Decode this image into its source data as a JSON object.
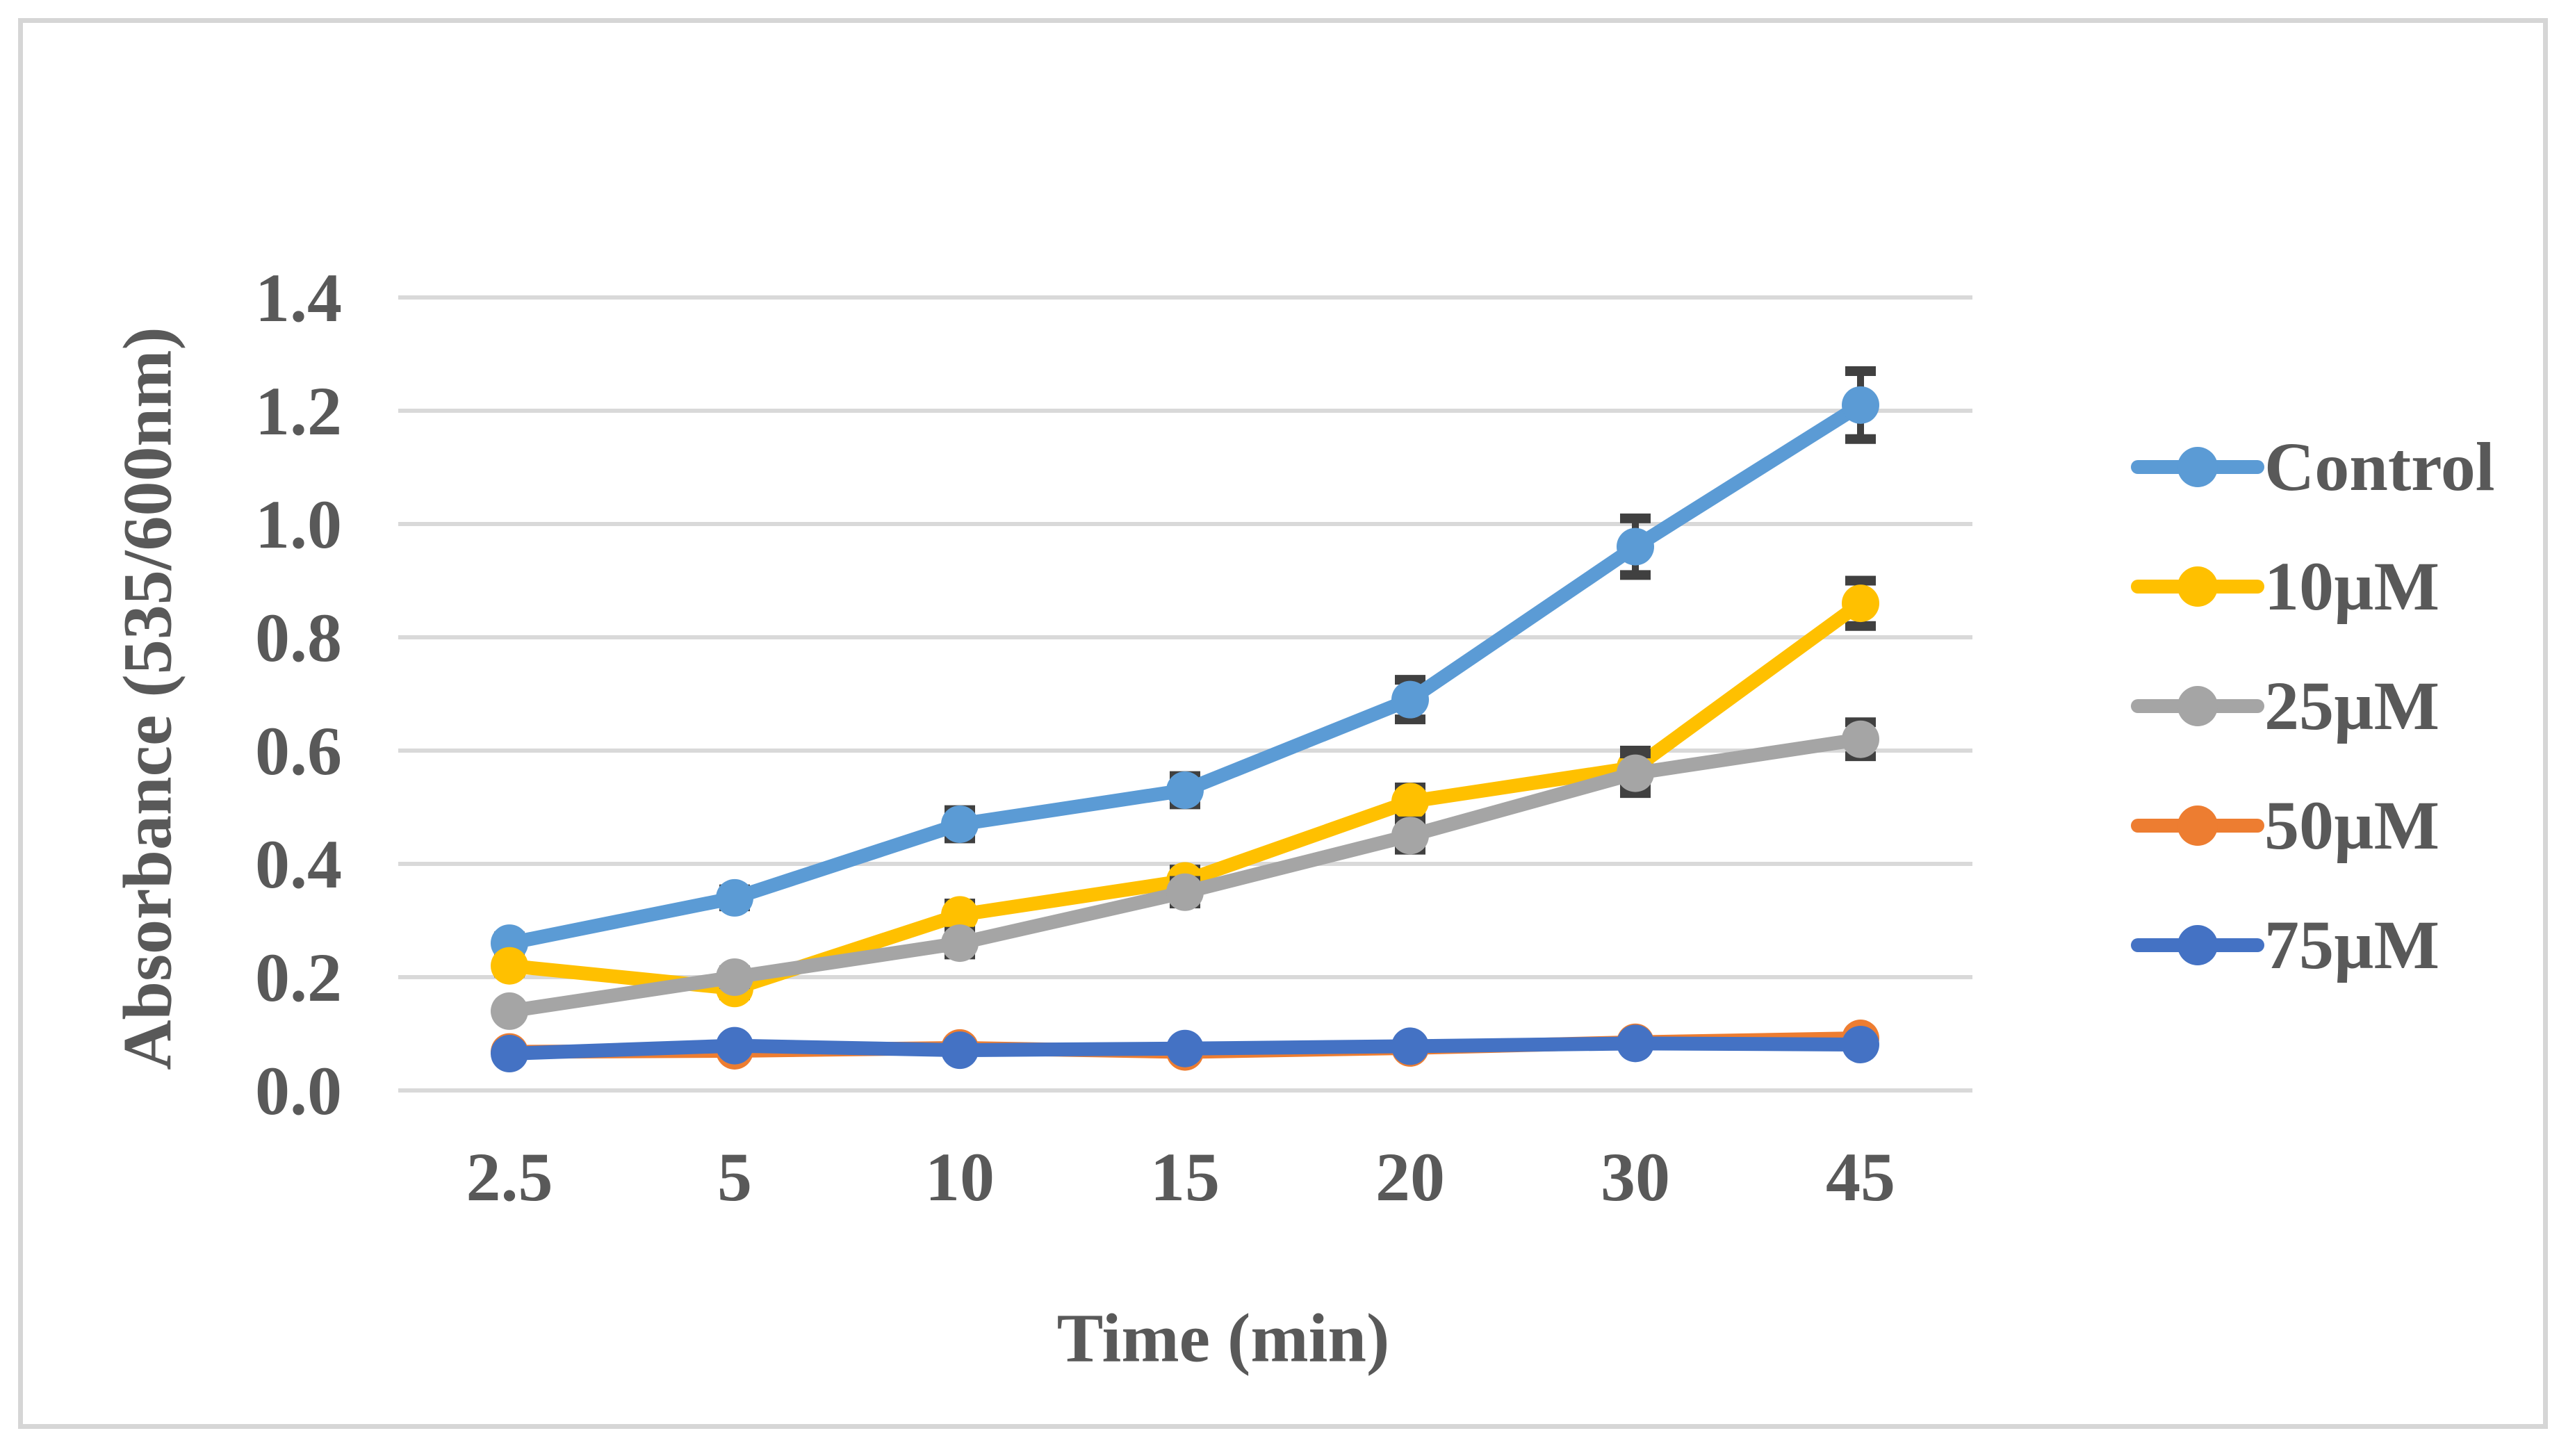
{
  "figure": {
    "background": "#ffffff",
    "border_color": "#d6d6d6"
  },
  "chart_data": {
    "type": "line",
    "title": "",
    "xlabel": "Time (min)",
    "ylabel": "Absorbance (535/600nm)",
    "categories": [
      "2.5",
      "5",
      "10",
      "15",
      "20",
      "30",
      "45"
    ],
    "y_ticks": [
      "0.0",
      "0.2",
      "0.4",
      "0.6",
      "0.8",
      "1.0",
      "1.2",
      "1.4"
    ],
    "ylim": [
      0,
      1.4
    ],
    "grid": "horizontal",
    "legend_position": "right",
    "gridline_color": "#d9d9d9",
    "error_bar_color": "#404040",
    "text_color": "#595959",
    "series": [
      {
        "name": "Control",
        "color": "#5B9BD5",
        "values": [
          0.26,
          0.34,
          0.47,
          0.53,
          0.69,
          0.96,
          1.21
        ],
        "errors": [
          0.012,
          0.015,
          0.025,
          0.025,
          0.035,
          0.05,
          0.06
        ]
      },
      {
        "name": "10µM",
        "color": "#FFC000",
        "values": [
          0.22,
          0.18,
          0.31,
          0.37,
          0.51,
          0.57,
          0.86
        ],
        "errors": [
          0.012,
          0.012,
          0.02,
          0.02,
          0.025,
          0.03,
          0.04
        ]
      },
      {
        "name": "25µM",
        "color": "#A5A5A5",
        "values": [
          0.14,
          0.2,
          0.26,
          0.35,
          0.45,
          0.56,
          0.62
        ],
        "errors": [
          0.01,
          0.012,
          0.02,
          0.02,
          0.025,
          0.035,
          0.03
        ]
      },
      {
        "name": "50µM",
        "color": "#ED7D31",
        "values": [
          0.068,
          0.07,
          0.075,
          0.068,
          0.075,
          0.085,
          0.092
        ],
        "errors": [
          0,
          0,
          0,
          0,
          0,
          0,
          0
        ]
      },
      {
        "name": "75µM",
        "color": "#4472C4",
        "values": [
          0.065,
          0.079,
          0.071,
          0.074,
          0.078,
          0.083,
          0.081
        ],
        "errors": [
          0,
          0,
          0,
          0,
          0,
          0,
          0
        ]
      }
    ]
  }
}
